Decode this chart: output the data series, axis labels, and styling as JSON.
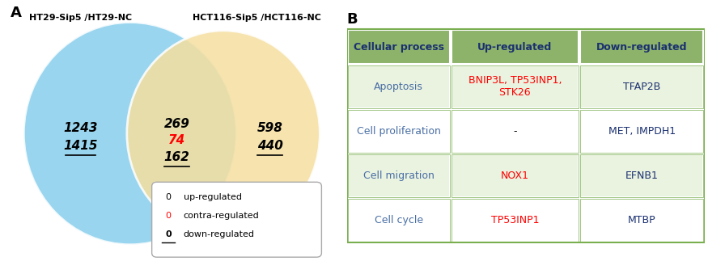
{
  "panel_A_label": "A",
  "panel_B_label": "B",
  "left_circle_label": "HT29-Sip5 /HT29-NC",
  "right_circle_label": "HCT116-Sip5 /HCT116-NC",
  "left_only": {
    "up": "1243",
    "down": "1415"
  },
  "overlap": {
    "up": "269",
    "contra": "74",
    "down": "162"
  },
  "right_only": {
    "up": "598",
    "down": "440"
  },
  "left_circle_color": "#87CEEB",
  "right_circle_color": "#F5DFA0",
  "legend_items": [
    {
      "label": "up-regulated",
      "color": "#000000",
      "underline": false
    },
    {
      "label": "contra-regulated",
      "color": "#FF0000",
      "underline": false
    },
    {
      "label": "down-regulated",
      "color": "#000000",
      "underline": true
    }
  ],
  "table_header": [
    "Cellular process",
    "Up-regulated",
    "Down-regulated"
  ],
  "table_header_bg": "#8DB26A",
  "table_header_color": "#1A3070",
  "table_border_color": "#7AAF50",
  "table_rows": [
    {
      "process": "Apoptosis",
      "up": "BNIP3L, TP53INP1,\nSTK26",
      "up_color": "#FF0000",
      "down": "TFAP2B",
      "down_color": "#1A3070",
      "row_bg": "#EAF2E0"
    },
    {
      "process": "Cell proliferation",
      "up": "-",
      "up_color": "#000000",
      "down": "MET, IMPDH1",
      "down_color": "#1A3070",
      "row_bg": "#FFFFFF"
    },
    {
      "process": "Cell migration",
      "up": "NOX1",
      "up_color": "#FF0000",
      "down": "EFNB1",
      "down_color": "#1A3070",
      "row_bg": "#EAF2E0"
    },
    {
      "process": "Cell cycle",
      "up": "TP53INP1",
      "up_color": "#FF0000",
      "down": "MTBP",
      "down_color": "#1A3070",
      "row_bg": "#FFFFFF"
    }
  ],
  "process_color": "#4A6FA5",
  "figsize": [
    8.75,
    3.44
  ],
  "dpi": 100
}
